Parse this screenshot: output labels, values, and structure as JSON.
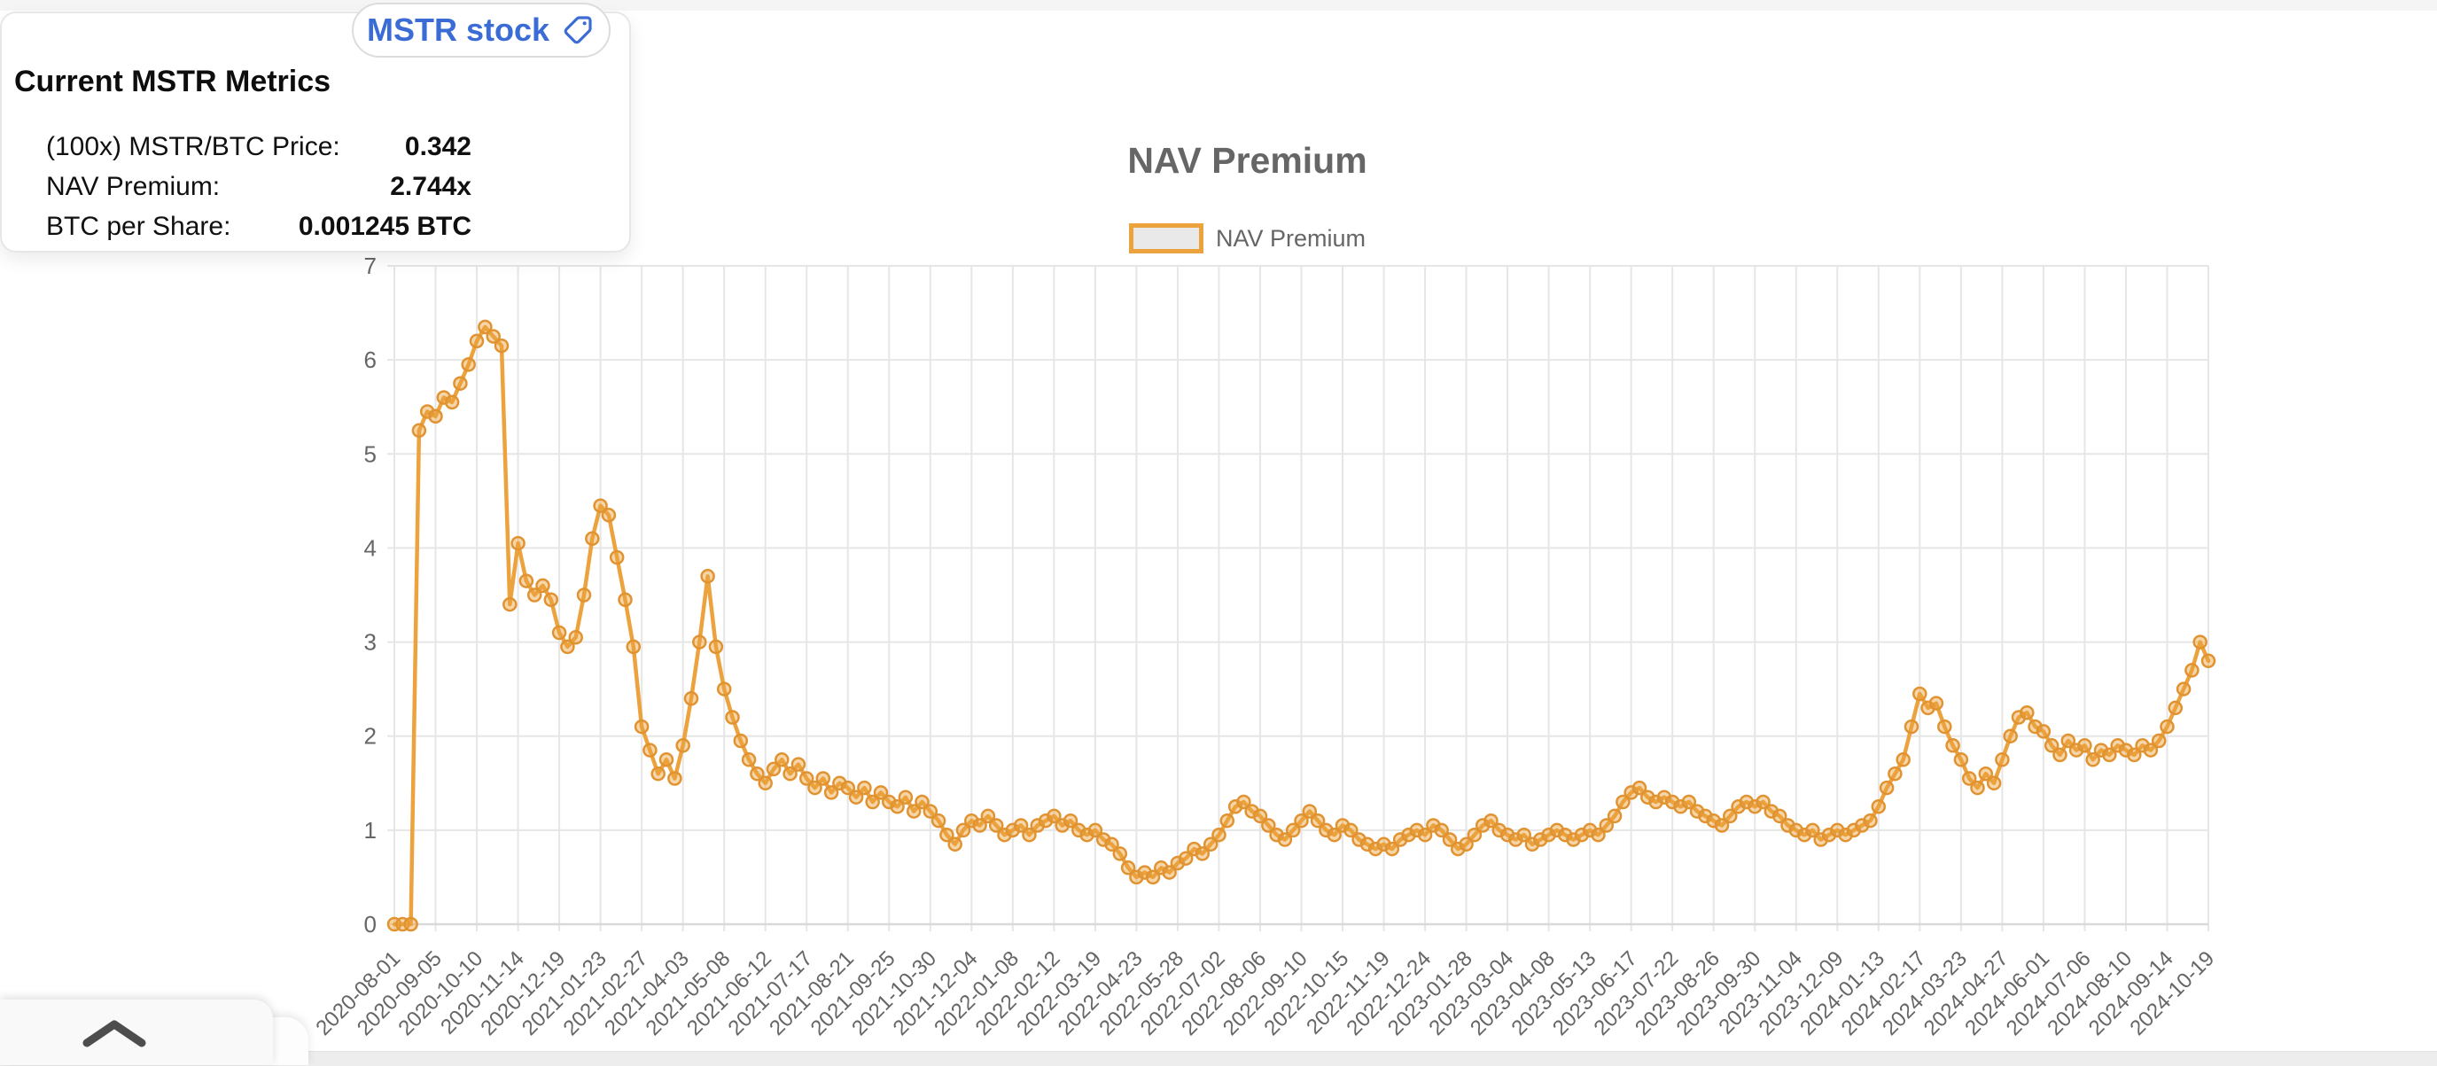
{
  "metrics_card": {
    "title": "Current MSTR Metrics",
    "tag_button_label": "MSTR stock",
    "rows": [
      {
        "label": "(100x) MSTR/BTC Price:",
        "value": "0.342"
      },
      {
        "label": "NAV Premium:",
        "value": "2.744x"
      },
      {
        "label": "BTC per Share:",
        "value": "0.001245 BTC"
      }
    ]
  },
  "chart": {
    "title": "NAV Premium",
    "legend_label": "NAV Premium"
  },
  "colors": {
    "series_line": "#eca23d",
    "marker_stroke": "#e09330",
    "marker_fill": "rgba(236,162,61,0.45)",
    "grid": "#e6e6e6",
    "axis_line": "#d9d9d9",
    "axis_text": "#666666",
    "accent_blue": "#3b6cd6",
    "legend_swatch_fill": "#e9e9e9"
  },
  "chart_data": {
    "type": "line",
    "title": "NAV Premium",
    "legend": [
      "NAV Premium"
    ],
    "legend_position": "top",
    "grid": true,
    "ylim": [
      0,
      7
    ],
    "y_ticks": [
      0,
      1,
      2,
      3,
      4,
      5,
      6,
      7
    ],
    "x_cadence": "weekly, one point per week; axis labels every 5th week",
    "x_tick_labels": [
      "2020-08-01",
      "2020-09-05",
      "2020-10-10",
      "2020-11-14",
      "2020-12-19",
      "2021-01-23",
      "2021-02-27",
      "2021-04-03",
      "2021-05-08",
      "2021-06-12",
      "2021-07-17",
      "2021-08-21",
      "2021-09-25",
      "2021-10-30",
      "2021-12-04",
      "2022-01-08",
      "2022-02-12",
      "2022-03-19",
      "2022-04-23",
      "2022-05-28",
      "2022-07-02",
      "2022-08-06",
      "2022-09-10",
      "2022-10-15",
      "2022-11-19",
      "2022-12-24",
      "2023-01-28",
      "2023-03-04",
      "2023-04-08",
      "2023-05-13",
      "2023-06-17",
      "2023-07-22",
      "2023-08-26",
      "2023-09-30",
      "2023-11-04",
      "2023-12-09",
      "2024-01-13",
      "2024-02-17",
      "2024-03-23",
      "2024-04-27",
      "2024-06-01",
      "2024-07-06",
      "2024-08-10",
      "2024-09-14",
      "2024-10-19"
    ],
    "series": [
      {
        "name": "NAV Premium",
        "values": [
          0,
          0,
          0,
          5.25,
          5.45,
          5.4,
          5.6,
          5.55,
          5.75,
          5.95,
          6.2,
          6.35,
          6.25,
          6.15,
          3.4,
          4.05,
          3.65,
          3.5,
          3.6,
          3.45,
          3.1,
          2.95,
          3.05,
          3.5,
          4.1,
          4.45,
          4.35,
          3.9,
          3.45,
          2.95,
          2.1,
          1.85,
          1.6,
          1.75,
          1.55,
          1.9,
          2.4,
          3.0,
          3.7,
          2.95,
          2.5,
          2.2,
          1.95,
          1.75,
          1.6,
          1.5,
          1.65,
          1.75,
          1.6,
          1.7,
          1.55,
          1.45,
          1.55,
          1.4,
          1.5,
          1.45,
          1.35,
          1.45,
          1.3,
          1.4,
          1.3,
          1.25,
          1.35,
          1.2,
          1.3,
          1.2,
          1.1,
          0.95,
          0.85,
          1.0,
          1.1,
          1.05,
          1.15,
          1.05,
          0.95,
          1.0,
          1.05,
          0.95,
          1.05,
          1.1,
          1.15,
          1.05,
          1.1,
          1.0,
          0.95,
          1.0,
          0.9,
          0.85,
          0.75,
          0.6,
          0.5,
          0.55,
          0.5,
          0.6,
          0.55,
          0.65,
          0.7,
          0.8,
          0.75,
          0.85,
          0.95,
          1.1,
          1.25,
          1.3,
          1.2,
          1.15,
          1.05,
          0.95,
          0.9,
          1.0,
          1.1,
          1.2,
          1.1,
          1.0,
          0.95,
          1.05,
          1.0,
          0.9,
          0.85,
          0.8,
          0.85,
          0.8,
          0.9,
          0.95,
          1.0,
          0.95,
          1.05,
          1.0,
          0.9,
          0.8,
          0.85,
          0.95,
          1.05,
          1.1,
          1.0,
          0.95,
          0.9,
          0.95,
          0.85,
          0.9,
          0.95,
          1.0,
          0.95,
          0.9,
          0.95,
          1.0,
          0.95,
          1.05,
          1.15,
          1.3,
          1.4,
          1.45,
          1.35,
          1.3,
          1.35,
          1.3,
          1.25,
          1.3,
          1.2,
          1.15,
          1.1,
          1.05,
          1.15,
          1.25,
          1.3,
          1.25,
          1.3,
          1.2,
          1.15,
          1.05,
          1.0,
          0.95,
          1.0,
          0.9,
          0.95,
          1.0,
          0.95,
          1.0,
          1.05,
          1.1,
          1.25,
          1.45,
          1.6,
          1.75,
          2.1,
          2.45,
          2.3,
          2.35,
          2.1,
          1.9,
          1.75,
          1.55,
          1.45,
          1.6,
          1.5,
          1.75,
          2.0,
          2.2,
          2.25,
          2.1,
          2.05,
          1.9,
          1.8,
          1.95,
          1.85,
          1.9,
          1.75,
          1.85,
          1.8,
          1.9,
          1.85,
          1.8,
          1.9,
          1.85,
          1.95,
          2.1,
          2.3,
          2.5,
          2.7,
          3.0,
          2.8
        ]
      }
    ]
  },
  "expander": {
    "icon": "chevron-up-icon"
  }
}
